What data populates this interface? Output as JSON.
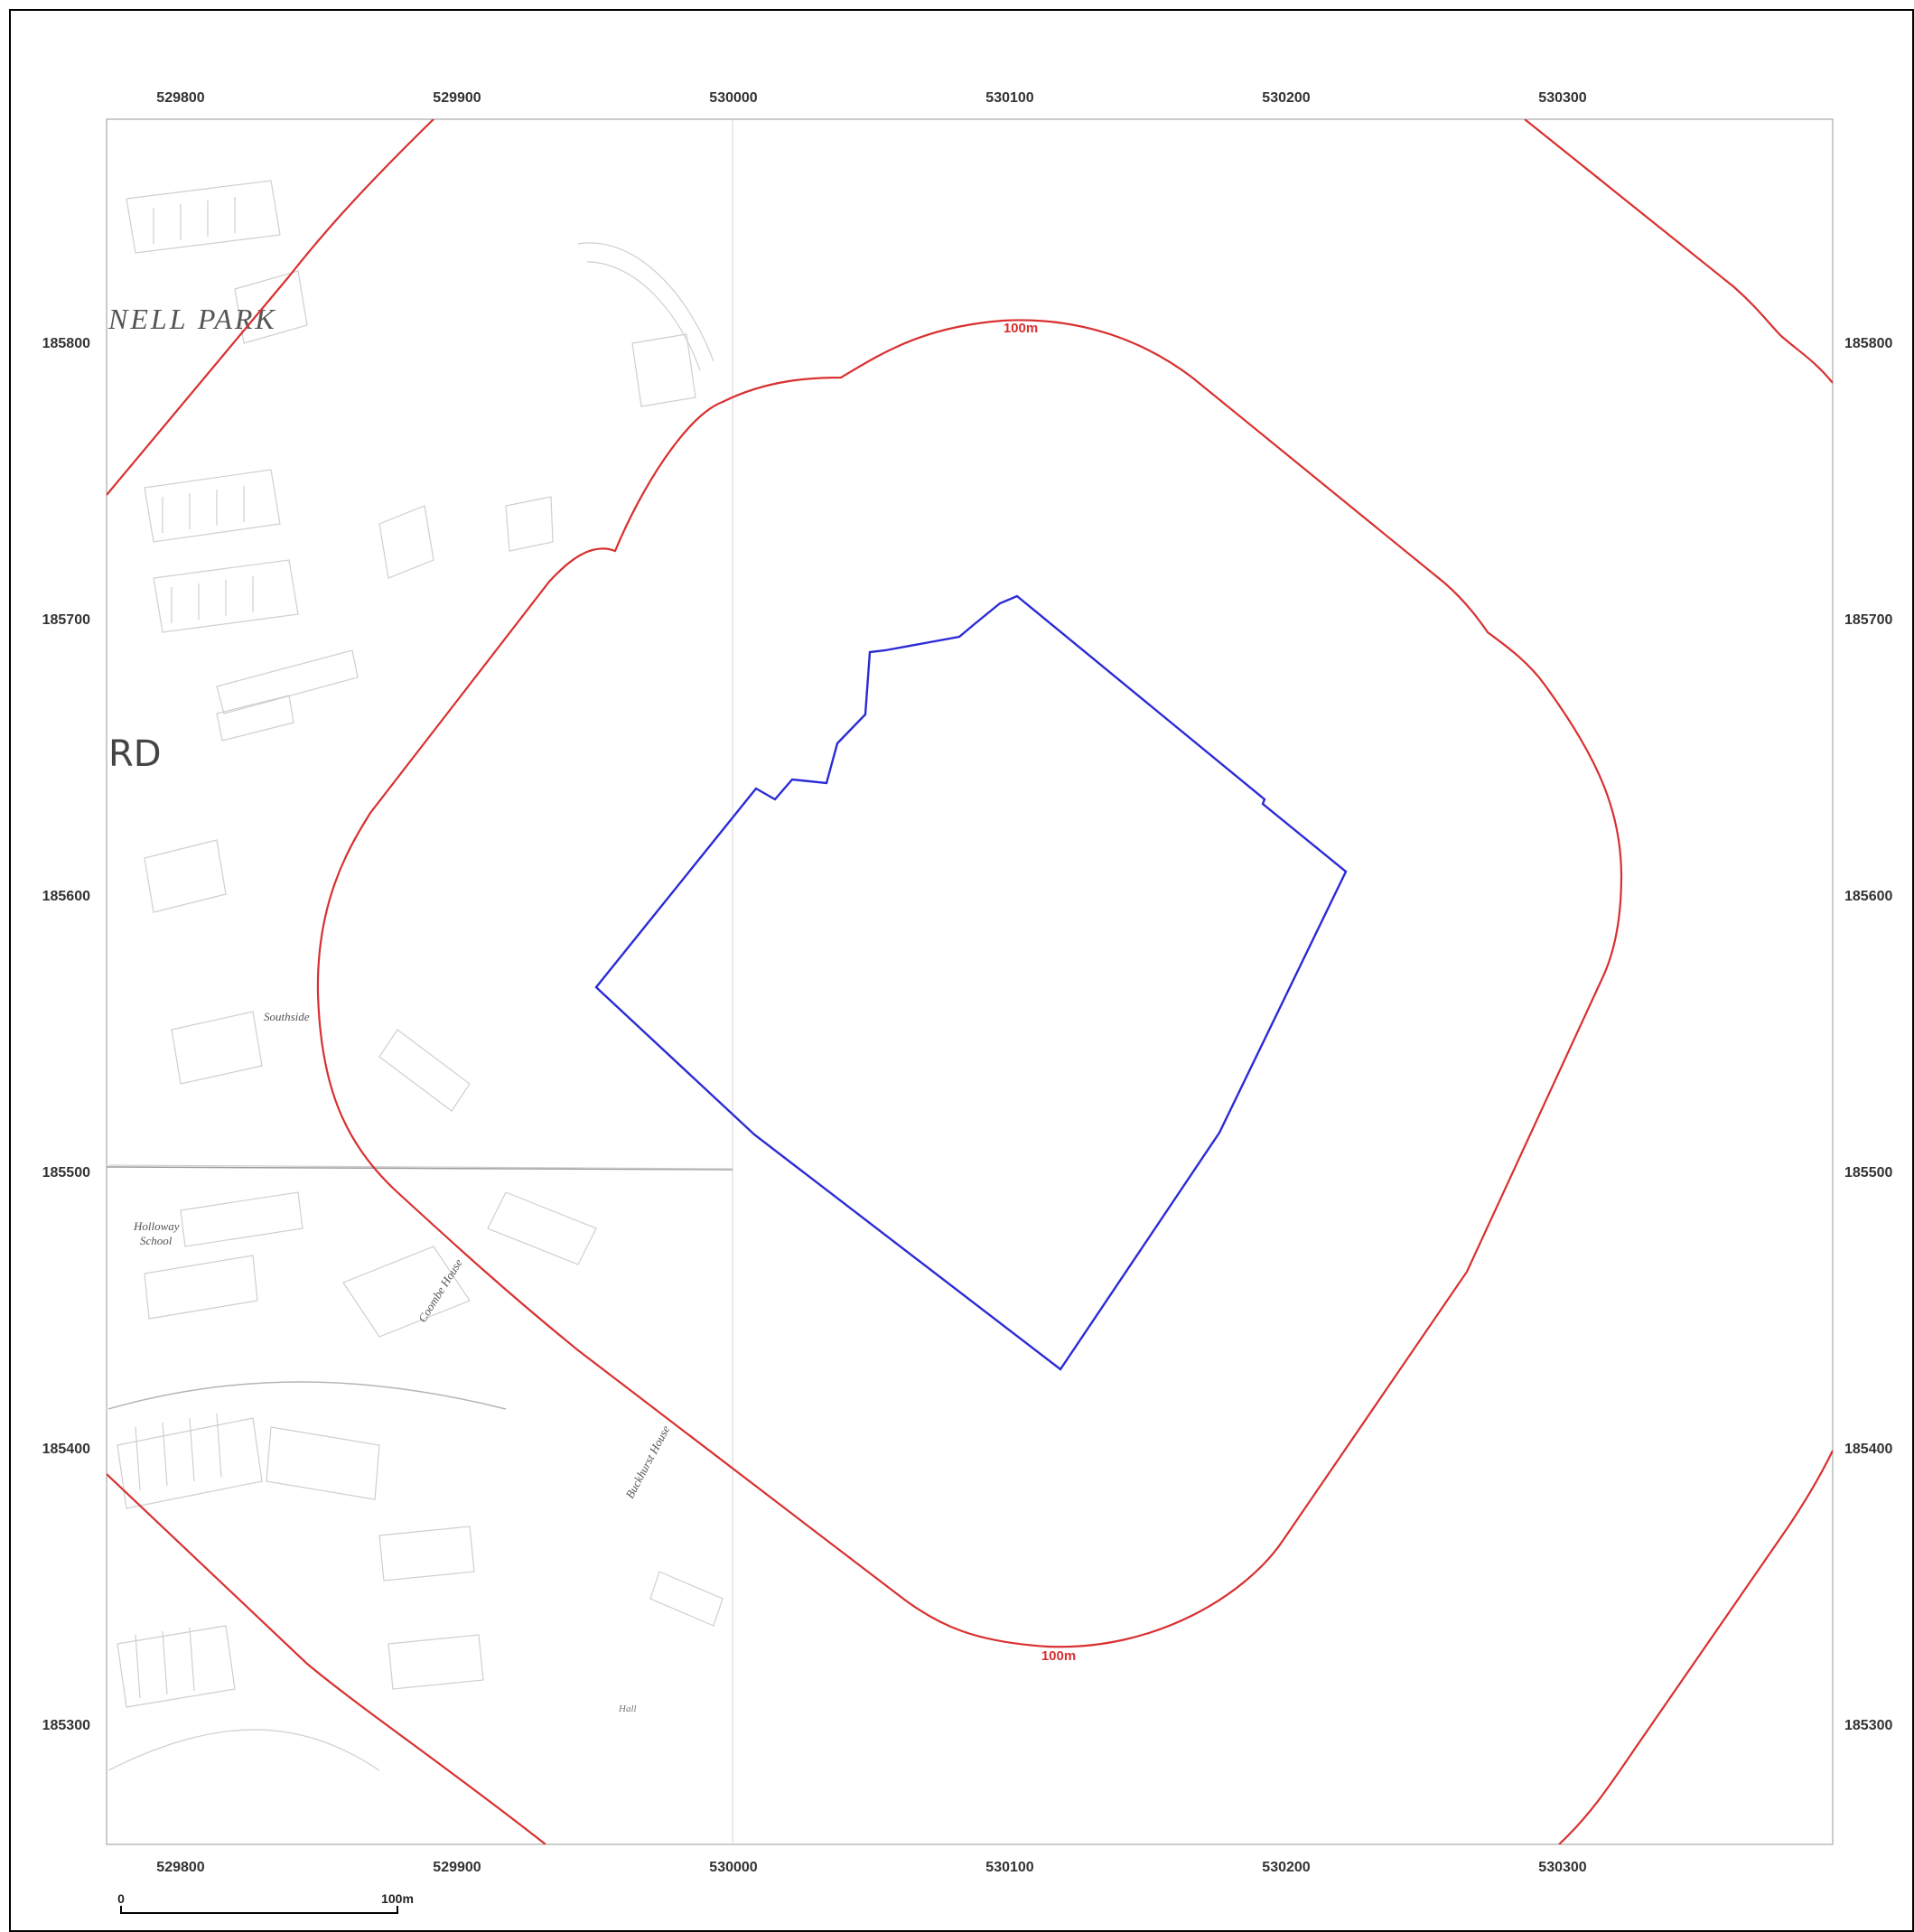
{
  "map": {
    "x_ticks": [
      "529800",
      "529900",
      "530000",
      "530100",
      "530200",
      "530300"
    ],
    "y_ticks": [
      "185800",
      "185700",
      "185600",
      "185500",
      "185400",
      "185300"
    ],
    "buffer_label_top": "100m",
    "buffer_label_bottom": "100m",
    "background_labels": {
      "street_top": "NELL PARK",
      "street_rd": "RD",
      "southside": "Southside",
      "holloway_school": "Holloway",
      "holloway_school_2": "School",
      "coombe_house": "Coombe House",
      "buckhurst_house": "Buckhurst House",
      "hall": "Hall"
    },
    "colors": {
      "site_boundary": "#2b2bd6",
      "buffer": "#d93030",
      "frame": "#000000",
      "grid": "#bdbdbd"
    }
  },
  "scale_bar": {
    "start_label": "0",
    "end_label": "100m"
  }
}
